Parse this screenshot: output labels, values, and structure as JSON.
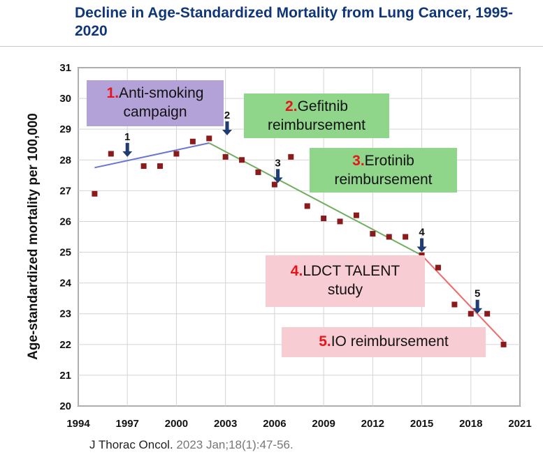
{
  "title": "Decline in Age-Standardized Mortality from Lung Cancer, 1995-2020",
  "citation": {
    "journal": "J Thorac Oncol.",
    "details": "2023 Jan;18(1):47-56."
  },
  "colors": {
    "points": "#8b1a1a",
    "trend1": "#6a74d6",
    "trend2": "#6fae5e",
    "trend3": "#f06a6a",
    "box1": "#b3a2d8",
    "box2": "#8fd68a",
    "box3": "#8fd68a",
    "box4": "#f7ccd2",
    "box5": "#f7ccd2",
    "arrow": "#1f3d73"
  },
  "annotations": [
    {
      "num": "1.",
      "line1": "Anti-smoking",
      "line2": "campaign"
    },
    {
      "num": "2.",
      "line1": "Gefitnib",
      "line2": "reimbursement"
    },
    {
      "num": "3.",
      "line1": "Erotinib",
      "line2": "reimbursement"
    },
    {
      "num": "4.",
      "line1": "LDCT TALENT",
      "line2": "study"
    },
    {
      "num": "5.",
      "line1": "IO reimbursement",
      "line2": ""
    }
  ],
  "chart_data": {
    "type": "scatter",
    "title": "Decline in Age-Standardized Mortality from Lung Cancer, 1995-2020",
    "xlabel": "",
    "ylabel": "Age-standardized mortality  per 100,000",
    "xlim": [
      1994,
      2021
    ],
    "ylim": [
      20,
      31
    ],
    "xticks": [
      "1994",
      "1997",
      "2000",
      "2003",
      "2006",
      "2009",
      "2012",
      "2015",
      "2018",
      "2021"
    ],
    "yticks": [
      "20",
      "21",
      "22",
      "23",
      "24",
      "25",
      "26",
      "27",
      "28",
      "29",
      "30",
      "31"
    ],
    "grid": true,
    "series": [
      {
        "name": "Age-standardized mortality",
        "x": [
          1995,
          1996,
          1998,
          1999,
          2000,
          2001,
          2002,
          2003,
          2004,
          2005,
          2006,
          2007,
          2008,
          2009,
          2010,
          2011,
          2012,
          2013,
          2014,
          2015,
          2016,
          2017,
          2018,
          2019,
          2020
        ],
        "y": [
          26.9,
          28.2,
          27.8,
          27.8,
          28.2,
          28.6,
          28.7,
          28.1,
          28.0,
          27.6,
          27.2,
          28.1,
          26.5,
          26.1,
          26.0,
          26.2,
          25.6,
          25.5,
          25.5,
          24.9,
          24.5,
          23.3,
          23.0,
          23.0,
          22.0
        ]
      }
    ],
    "trend_lines": [
      {
        "name": "trend1",
        "x": [
          1995,
          2002
        ],
        "y": [
          27.75,
          28.55
        ]
      },
      {
        "name": "trend2",
        "x": [
          2002,
          2015
        ],
        "y": [
          28.55,
          24.9
        ]
      },
      {
        "name": "trend3",
        "x": [
          2015,
          2020
        ],
        "y": [
          24.9,
          22.1
        ]
      }
    ],
    "event_markers": [
      {
        "label": "1",
        "x": 1997.0,
        "y": 28.1
      },
      {
        "label": "2",
        "x": 2003.1,
        "y": 28.8
      },
      {
        "label": "3",
        "x": 2006.2,
        "y": 27.25
      },
      {
        "label": "4",
        "x": 2015.0,
        "y": 25.0
      },
      {
        "label": "5",
        "x": 2018.4,
        "y": 23.0
      }
    ]
  }
}
